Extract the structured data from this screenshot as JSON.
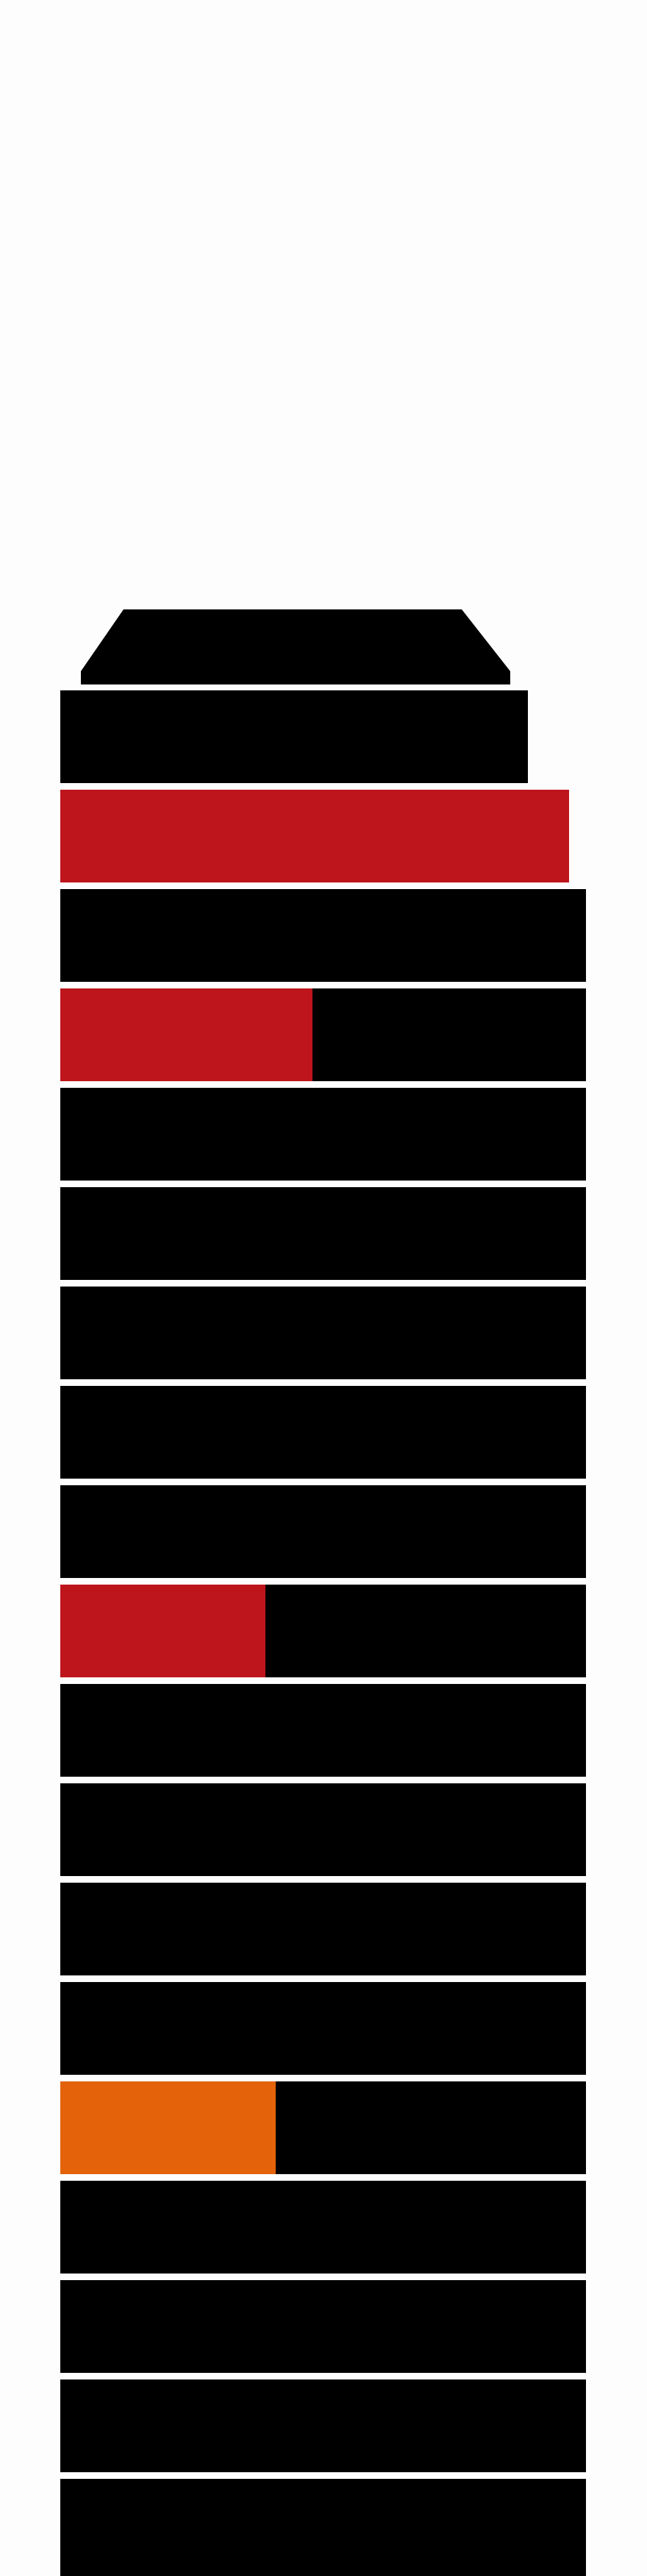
{
  "colors": {
    "background": "#fdfdfd",
    "floor": "#000000",
    "separator": "#ffffff",
    "highlight_red": "#be151c",
    "highlight_orange": "#e3620a"
  },
  "building": {
    "floors": [
      {
        "highlight": "none",
        "level": 0
      },
      {
        "highlight": "red",
        "level": 1.0
      },
      {
        "highlight": "none",
        "level": 0
      },
      {
        "highlight": "red",
        "level": 0.48
      },
      {
        "highlight": "none",
        "level": 0
      },
      {
        "highlight": "none",
        "level": 0
      },
      {
        "highlight": "none",
        "level": 0
      },
      {
        "highlight": "none",
        "level": 0
      },
      {
        "highlight": "none",
        "level": 0
      },
      {
        "highlight": "red",
        "level": 0.39
      },
      {
        "highlight": "none",
        "level": 0
      },
      {
        "highlight": "none",
        "level": 0
      },
      {
        "highlight": "none",
        "level": 0
      },
      {
        "highlight": "none",
        "level": 0
      },
      {
        "highlight": "orange",
        "level": 0.41
      },
      {
        "highlight": "none",
        "level": 0
      },
      {
        "highlight": "none",
        "level": 0
      },
      {
        "highlight": "none",
        "level": 0
      },
      {
        "highlight": "none",
        "level": 0
      }
    ]
  }
}
